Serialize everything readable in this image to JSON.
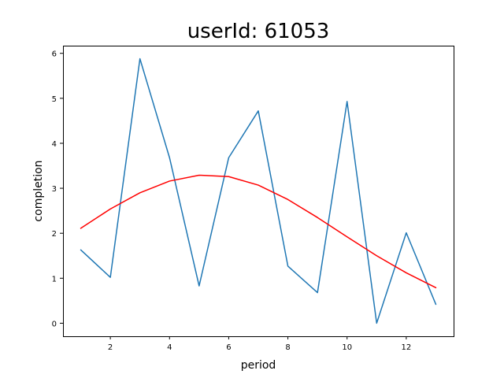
{
  "chart_data": {
    "type": "line",
    "title": "userId: 61053",
    "xlabel": "period",
    "ylabel": "completion",
    "x": [
      1,
      2,
      3,
      4,
      5,
      6,
      7,
      8,
      9,
      10,
      11,
      12,
      13
    ],
    "series": [
      {
        "values": [
          1.63,
          1.02,
          5.88,
          3.68,
          0.83,
          3.68,
          4.72,
          1.27,
          0.68,
          4.93,
          0.0,
          2.01,
          0.42
        ],
        "color": "#1f77b4"
      },
      {
        "values": [
          2.11,
          2.54,
          2.9,
          3.16,
          3.29,
          3.26,
          3.07,
          2.75,
          2.35,
          1.92,
          1.5,
          1.12,
          0.79
        ],
        "color": "#ff0000"
      }
    ],
    "xlim": [
      0.4,
      13.6
    ],
    "ylim": [
      -0.29,
      6.17
    ],
    "xticks": [
      2,
      4,
      6,
      8,
      10,
      12
    ],
    "yticks": [
      0,
      1,
      2,
      3,
      4,
      5,
      6
    ],
    "grid": false,
    "legend": "none"
  }
}
